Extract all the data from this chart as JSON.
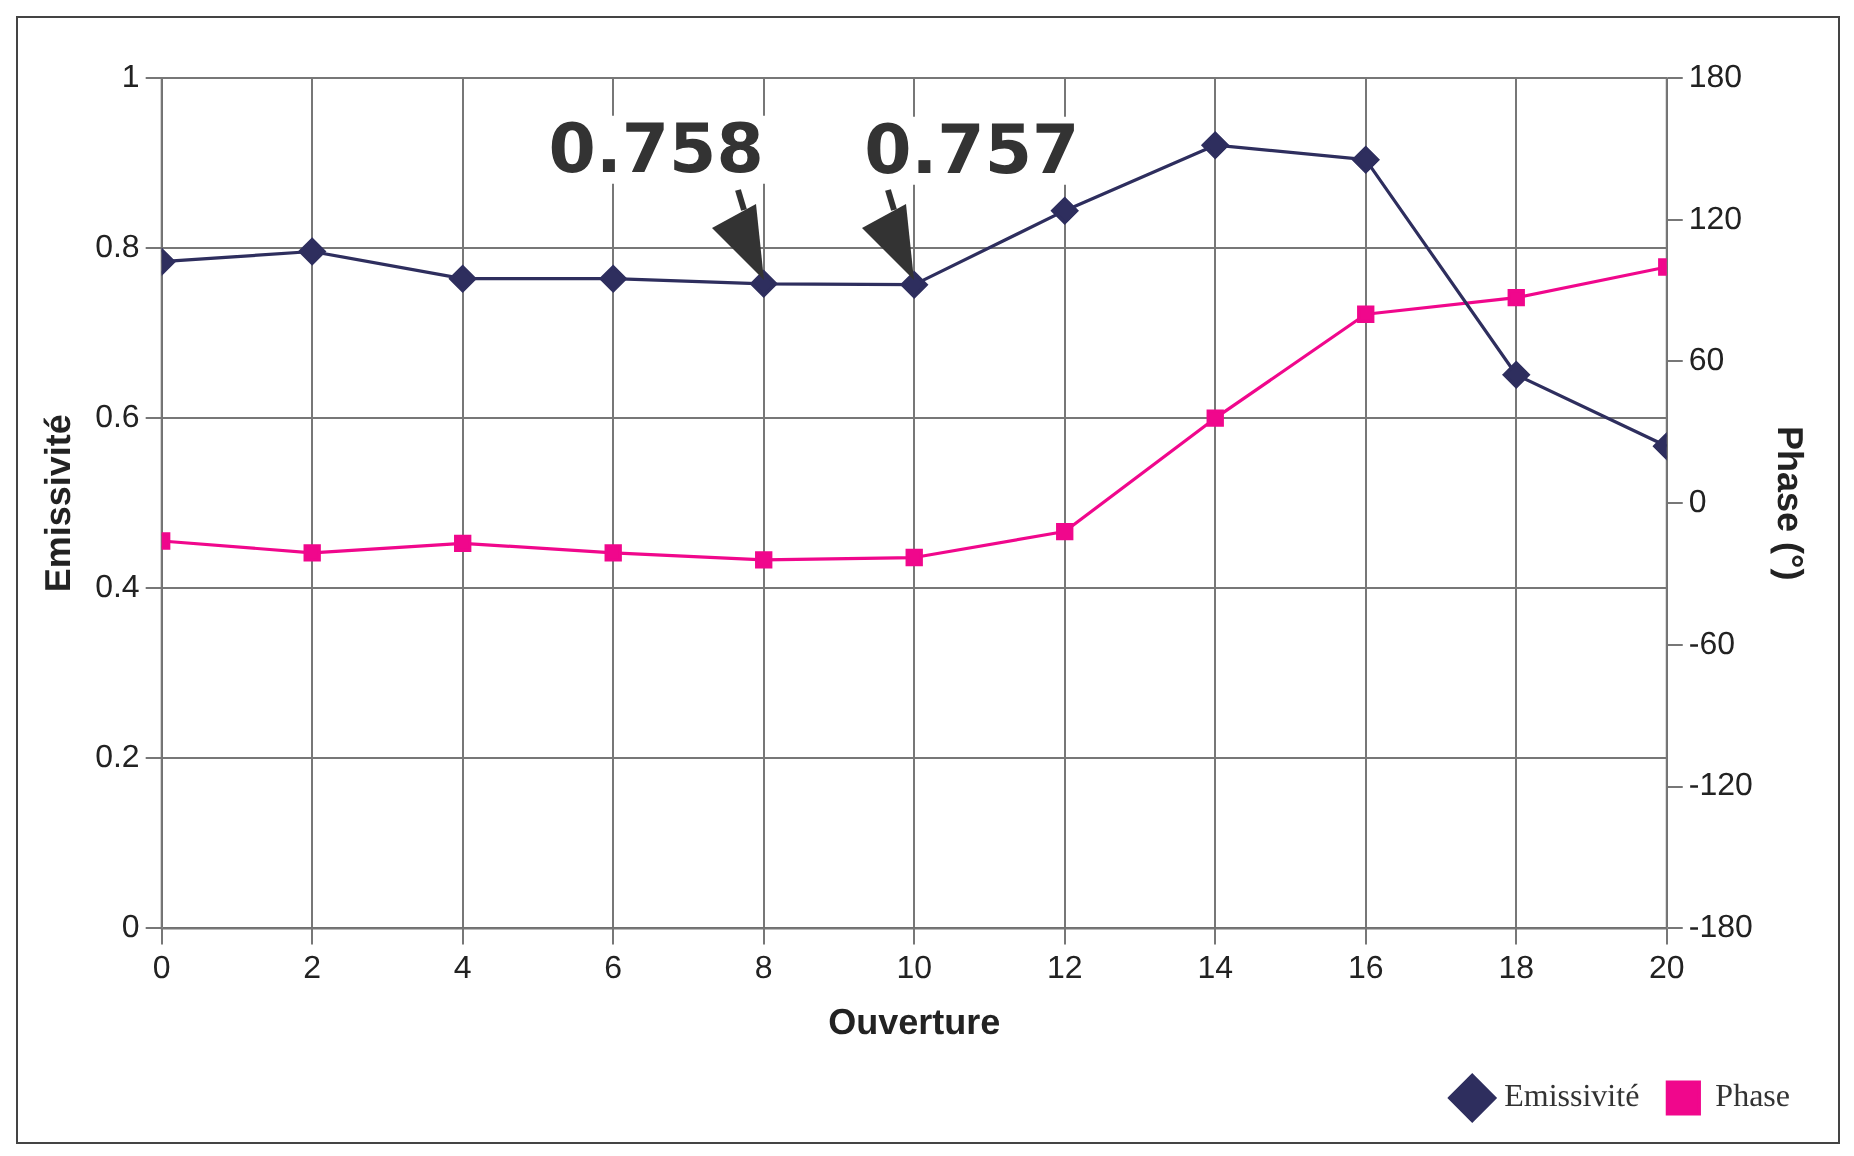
{
  "chart_data": {
    "type": "line",
    "xlabel": "Ouverture",
    "ylabel": "Emissivité",
    "y2label": "Phase (°)",
    "x": [
      0,
      2,
      4,
      6,
      8,
      10,
      12,
      14,
      16,
      18,
      20
    ],
    "xlim": [
      0,
      20
    ],
    "xticks": [
      0,
      2,
      4,
      6,
      8,
      10,
      12,
      14,
      16,
      18,
      20
    ],
    "ylim": [
      0,
      1
    ],
    "yticks": [
      0,
      0.2,
      0.4,
      0.6,
      0.8,
      1
    ],
    "y2lim": [
      -180,
      180
    ],
    "y2ticks": [
      -180,
      -120,
      -60,
      0,
      60,
      120,
      180
    ],
    "series": [
      {
        "name": "Emissivité",
        "color": "#2e2e5e",
        "marker": "diamond",
        "values": [
          0.784,
          0.796,
          0.764,
          0.764,
          0.758,
          0.757,
          0.844,
          0.921,
          0.904,
          0.651,
          0.567
        ]
      },
      {
        "name": "Phase",
        "color": "#f0078c",
        "marker": "square",
        "axis": "y2",
        "values": [
          -16,
          -21,
          -17,
          -21,
          -24,
          -23,
          -12,
          36,
          80,
          87,
          100
        ]
      }
    ],
    "annotations": [
      {
        "text": "0.758",
        "x": 8,
        "y": 0.758
      },
      {
        "text": "0.757",
        "x": 10,
        "y": 0.757
      }
    ],
    "grid": true,
    "legend": "bottom right"
  }
}
